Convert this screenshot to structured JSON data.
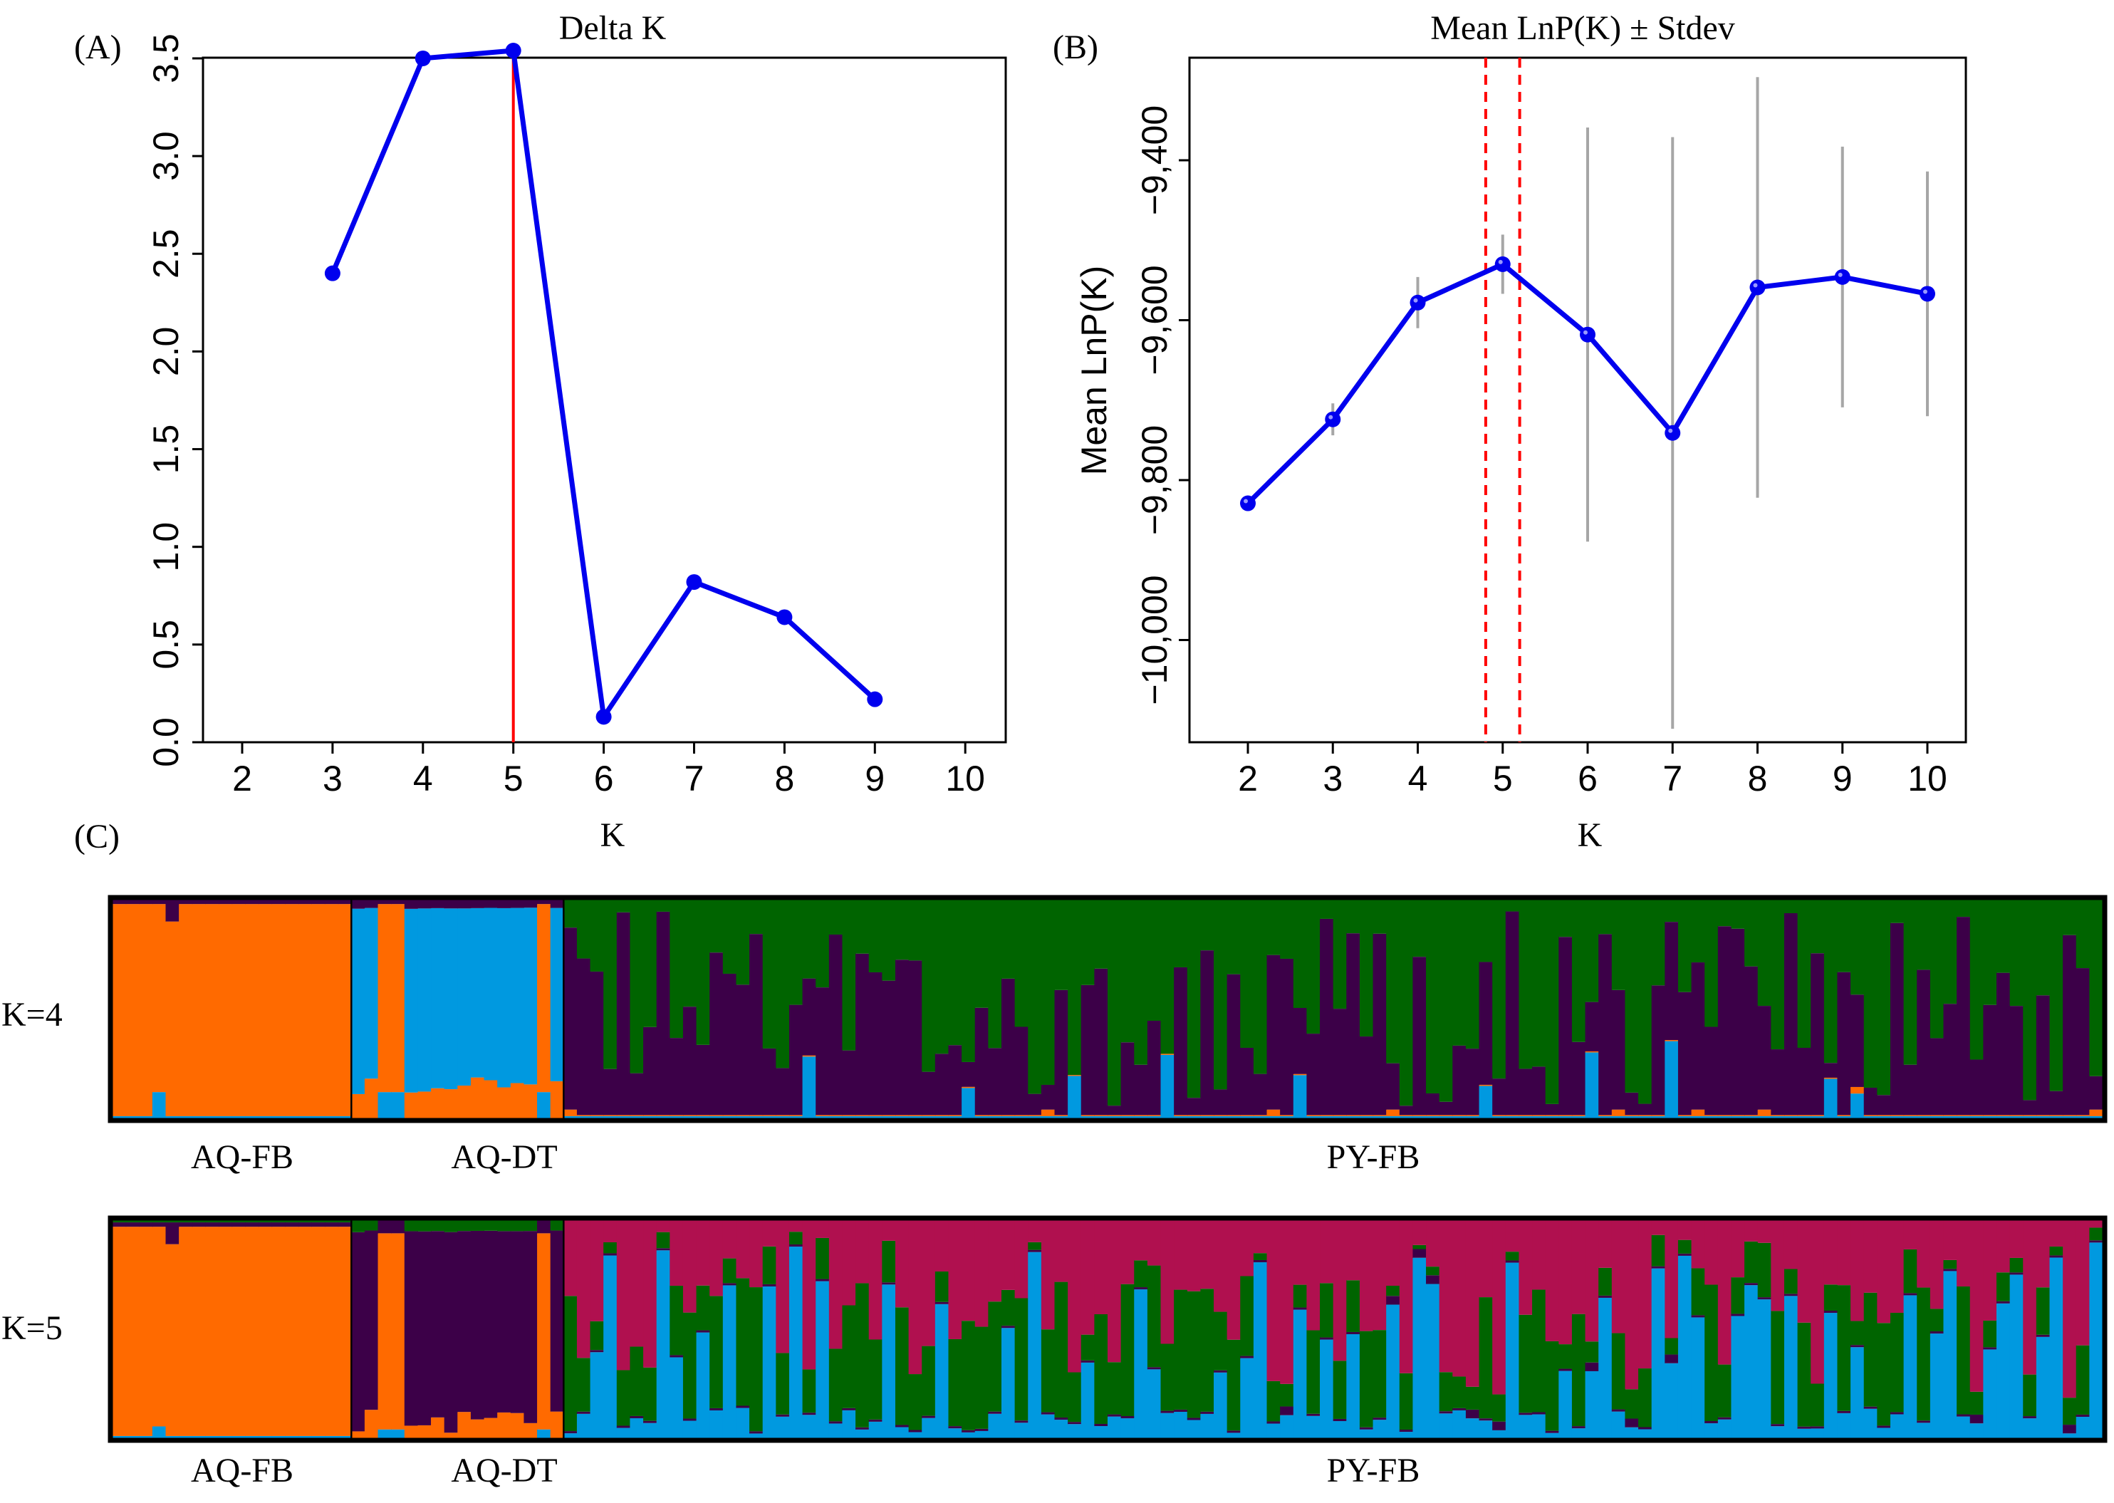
{
  "panels": {
    "a": {
      "letter": "(A)"
    },
    "b": {
      "letter": "(B)"
    },
    "c": {
      "letter": "(C)"
    }
  },
  "chart_data": [
    {
      "id": "delta-k",
      "type": "line",
      "title": "Delta K",
      "xlabel": "K",
      "ylabel": "",
      "xlim": [
        2,
        10
      ],
      "ylim": [
        0,
        3.5
      ],
      "xticks": [
        2,
        3,
        4,
        5,
        6,
        7,
        8,
        9,
        10
      ],
      "yticks": [
        0.0,
        0.5,
        1.0,
        1.5,
        2.0,
        2.5,
        3.0,
        3.5
      ],
      "ytick_labels": [
        "0.0",
        "0.5",
        "1.0",
        "1.5",
        "2.0",
        "2.5",
        "3.0",
        "3.5"
      ],
      "x": [
        3,
        4,
        5,
        6,
        7,
        8,
        9
      ],
      "values": [
        2.4,
        3.5,
        3.54,
        0.13,
        0.82,
        0.64,
        0.22
      ],
      "line_color": "#0000ee",
      "highlight_k": 5,
      "highlight_color": "#ff0000",
      "grid": false
    },
    {
      "id": "mean-lnp",
      "type": "line",
      "title": "Mean LnP(K)   ±  Stdev",
      "xlabel": "K",
      "ylabel": "Mean LnP(K)",
      "xlim": [
        2,
        10
      ],
      "ylim": [
        -10100,
        -9250
      ],
      "xticks": [
        2,
        3,
        4,
        5,
        6,
        7,
        8,
        9,
        10
      ],
      "yticks": [
        -10000,
        -9800,
        -9600,
        -9400
      ],
      "ytick_labels": [
        "−10,000",
        "−9,800",
        "−9,600",
        "−9,400"
      ],
      "x": [
        2,
        3,
        4,
        5,
        6,
        7,
        8,
        9,
        10
      ],
      "values": [
        -9829,
        -9724,
        -9578,
        -9530,
        -9618,
        -9741,
        -9559,
        -9546,
        -9567
      ],
      "errors": [
        2,
        20,
        32,
        37,
        259,
        370,
        263,
        163,
        153
      ],
      "line_color": "#0000ee",
      "error_color": "#a6a6a6",
      "dashed_k": [
        4.8,
        5.2
      ],
      "dashed_color": "#ff0000",
      "grid": false
    },
    {
      "id": "structure-bars",
      "type": "bar",
      "colors": {
        "orange": "#ff6a00",
        "blue": "#0099e0",
        "green": "#006400",
        "purple": "#3c0048",
        "magenta": "#b0104f"
      },
      "groups": [
        {
          "label": "AQ-FB",
          "count": 18
        },
        {
          "label": "AQ-DT",
          "count": 16
        },
        {
          "label": "PY-FB",
          "count": 116
        }
      ],
      "rows": [
        {
          "label": "K=4",
          "k": 4
        },
        {
          "label": "K=5",
          "k": 5
        }
      ]
    }
  ]
}
